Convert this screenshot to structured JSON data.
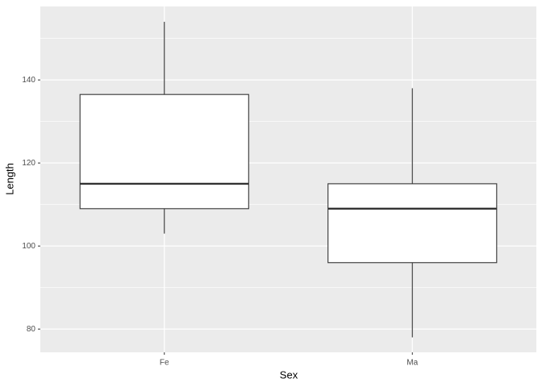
{
  "chart_data": {
    "type": "box",
    "x_label": "Sex",
    "y_label": "Length",
    "categories": [
      "Fe",
      "Ma"
    ],
    "boxes": [
      {
        "whisker_low": 103,
        "q1": 109,
        "median": 115,
        "q3": 136.5,
        "whisker_high": 154
      },
      {
        "whisker_low": 78,
        "q1": 96,
        "median": 109,
        "q3": 115,
        "whisker_high": 138
      }
    ],
    "ylim": [
      74.4,
      157.7
    ],
    "yticks": [
      80,
      100,
      120,
      140
    ],
    "y_minor_grid": [
      90,
      110,
      130,
      150
    ],
    "grid": true,
    "panel_color": "#ebebeb",
    "box_fill": "#ffffff",
    "box_stroke": "#333333"
  }
}
